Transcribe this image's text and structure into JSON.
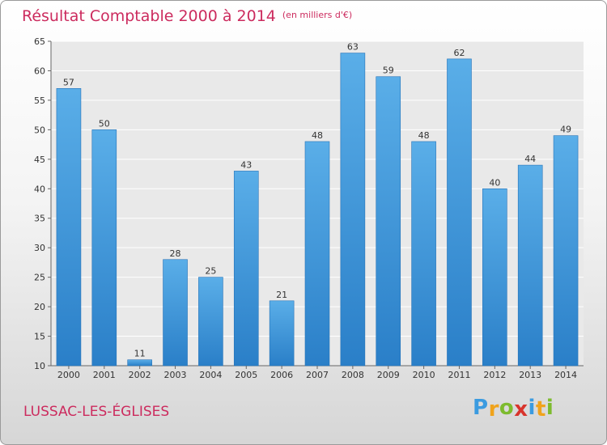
{
  "chart_data": {
    "type": "bar",
    "title": "Résultat Comptable 2000 à 2014",
    "unit": "(en milliers d'€)",
    "categories": [
      "2000",
      "2001",
      "2002",
      "2003",
      "2004",
      "2005",
      "2006",
      "2007",
      "2008",
      "2009",
      "2010",
      "2011",
      "2012",
      "2013",
      "2014"
    ],
    "values": [
      57,
      50,
      11,
      28,
      25,
      43,
      21,
      48,
      63,
      59,
      48,
      62,
      40,
      44,
      49
    ],
    "ylim": [
      10,
      65
    ],
    "yticks": [
      10,
      15,
      20,
      25,
      30,
      35,
      40,
      45,
      50,
      55,
      60,
      65
    ],
    "xlabel": "",
    "ylabel": "",
    "grid": "horizontal"
  },
  "commune": "LUSSAC-LES-ÉGLISES",
  "brand": {
    "letters": [
      "P",
      "r",
      "o",
      "x",
      "i",
      "t",
      "i"
    ],
    "colors": [
      "#3b9be0",
      "#f0a31c",
      "#7dbb2e",
      "#d8342c",
      "#3b9be0",
      "#f0a31c",
      "#7dbb2e"
    ]
  },
  "colors": {
    "bar_light": "#5aaee8",
    "bar_dark": "#2a7fc8",
    "accent": "#cc2b5e"
  }
}
